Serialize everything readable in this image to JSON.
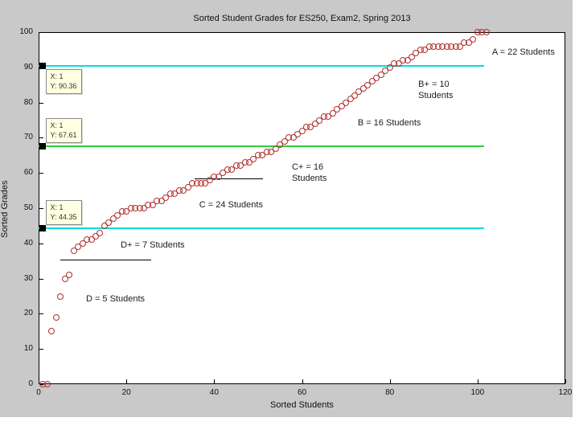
{
  "chart_data": {
    "type": "scatter",
    "title": "Sorted Student Grades for ES250, Exam2, Spring 2013",
    "xlabel": "Sorted Students",
    "ylabel": "Sorted Grades",
    "xlim": [
      0,
      120
    ],
    "ylim": [
      0,
      100
    ],
    "x_ticks": [
      0,
      20,
      40,
      60,
      80,
      100,
      120
    ],
    "y_ticks": [
      0,
      10,
      20,
      30,
      40,
      50,
      60,
      70,
      80,
      90,
      100
    ],
    "grid": false,
    "legend": "none",
    "marker": {
      "shape": "circle",
      "color": "#b03030"
    },
    "points": [
      [
        1,
        0
      ],
      [
        2,
        0
      ],
      [
        3,
        15
      ],
      [
        4,
        19
      ],
      [
        5,
        25
      ],
      [
        6,
        30
      ],
      [
        7,
        31
      ],
      [
        8,
        38
      ],
      [
        9,
        39
      ],
      [
        10,
        40
      ],
      [
        11,
        41
      ],
      [
        12,
        41
      ],
      [
        13,
        42
      ],
      [
        14,
        43
      ],
      [
        15,
        45
      ],
      [
        16,
        46
      ],
      [
        17,
        47
      ],
      [
        18,
        48
      ],
      [
        19,
        49
      ],
      [
        20,
        49
      ],
      [
        21,
        50
      ],
      [
        22,
        50
      ],
      [
        23,
        50
      ],
      [
        24,
        50
      ],
      [
        25,
        51
      ],
      [
        26,
        51
      ],
      [
        27,
        52
      ],
      [
        28,
        52
      ],
      [
        29,
        53
      ],
      [
        30,
        54
      ],
      [
        31,
        54
      ],
      [
        32,
        55
      ],
      [
        33,
        55
      ],
      [
        34,
        56
      ],
      [
        35,
        57
      ],
      [
        36,
        57
      ],
      [
        37,
        57
      ],
      [
        38,
        57
      ],
      [
        39,
        58
      ],
      [
        40,
        59
      ],
      [
        41,
        59
      ],
      [
        42,
        60
      ],
      [
        43,
        61
      ],
      [
        44,
        61
      ],
      [
        45,
        62
      ],
      [
        46,
        62
      ],
      [
        47,
        63
      ],
      [
        48,
        63
      ],
      [
        49,
        64
      ],
      [
        50,
        65
      ],
      [
        51,
        65
      ],
      [
        52,
        66
      ],
      [
        53,
        66
      ],
      [
        54,
        67
      ],
      [
        55,
        68
      ],
      [
        56,
        69
      ],
      [
        57,
        70
      ],
      [
        58,
        70
      ],
      [
        59,
        71
      ],
      [
        60,
        72
      ],
      [
        61,
        73
      ],
      [
        62,
        73
      ],
      [
        63,
        74
      ],
      [
        64,
        75
      ],
      [
        65,
        76
      ],
      [
        66,
        76
      ],
      [
        67,
        77
      ],
      [
        68,
        78
      ],
      [
        69,
        79
      ],
      [
        70,
        80
      ],
      [
        71,
        81
      ],
      [
        72,
        82
      ],
      [
        73,
        83
      ],
      [
        74,
        84
      ],
      [
        75,
        85
      ],
      [
        76,
        86
      ],
      [
        77,
        87
      ],
      [
        78,
        88
      ],
      [
        79,
        89
      ],
      [
        80,
        90
      ],
      [
        81,
        91
      ],
      [
        82,
        91
      ],
      [
        83,
        92
      ],
      [
        84,
        92
      ],
      [
        85,
        93
      ],
      [
        86,
        94
      ],
      [
        87,
        95
      ],
      [
        88,
        95
      ],
      [
        89,
        96
      ],
      [
        90,
        96
      ],
      [
        91,
        96
      ],
      [
        92,
        96
      ],
      [
        93,
        96
      ],
      [
        94,
        96
      ],
      [
        95,
        96
      ],
      [
        96,
        96
      ],
      [
        97,
        97
      ],
      [
        98,
        97
      ],
      [
        99,
        98
      ],
      [
        100,
        100
      ],
      [
        101,
        100
      ],
      [
        102,
        100
      ]
    ],
    "cutoff_lines": [
      {
        "y": 90.36,
        "x_start": 0,
        "x_end": 101.5,
        "color": "#00dede"
      },
      {
        "y": 67.61,
        "x_start": 0,
        "x_end": 101.5,
        "color": "#2ecc40"
      },
      {
        "y": 44.35,
        "x_start": 0,
        "x_end": 101.5,
        "color": "#00dede"
      }
    ],
    "boundary_segments": [
      {
        "y": 58.5,
        "x_start": 35.5,
        "x_end": 51.1
      },
      {
        "y": 35.4,
        "x_start": 4.9,
        "x_end": 25.6
      }
    ],
    "annotations": [
      {
        "lines": [
          "A = 22 Students"
        ],
        "x": 103.3,
        "y": 94.5
      },
      {
        "lines": [
          "B+ = 10",
          "Students"
        ],
        "x": 86.5,
        "y": 85.5
      },
      {
        "lines": [
          "B = 16 Students"
        ],
        "x": 72.7,
        "y": 74.5
      },
      {
        "lines": [
          "C+ = 16",
          "Students"
        ],
        "x": 57.7,
        "y": 61.8
      },
      {
        "lines": [
          "C = 24 Students"
        ],
        "x": 36.6,
        "y": 51.2
      },
      {
        "lines": [
          "D+ = 7 Students"
        ],
        "x": 18.7,
        "y": 39.8
      },
      {
        "lines": [
          "D = 5 Students"
        ],
        "x": 10.8,
        "y": 24.5
      }
    ],
    "datatips": [
      {
        "x_text": "X: 1",
        "y_text": "Y: 90.36",
        "x": 1,
        "y": 90.36,
        "placement": "below"
      },
      {
        "x_text": "X: 1",
        "y_text": "Y: 67.61",
        "x": 1,
        "y": 67.61,
        "placement": "above"
      },
      {
        "x_text": "X: 1",
        "y_text": "Y: 44.35",
        "x": 1,
        "y": 44.35,
        "placement": "above"
      }
    ],
    "colors": {
      "figure_bg": "#c9c9c9",
      "plot_bg": "#ffffff",
      "marker": "#b03030",
      "cyan_line": "#00dede",
      "green_line": "#2ecc40",
      "datatip_bg": "#ffffe1"
    }
  }
}
